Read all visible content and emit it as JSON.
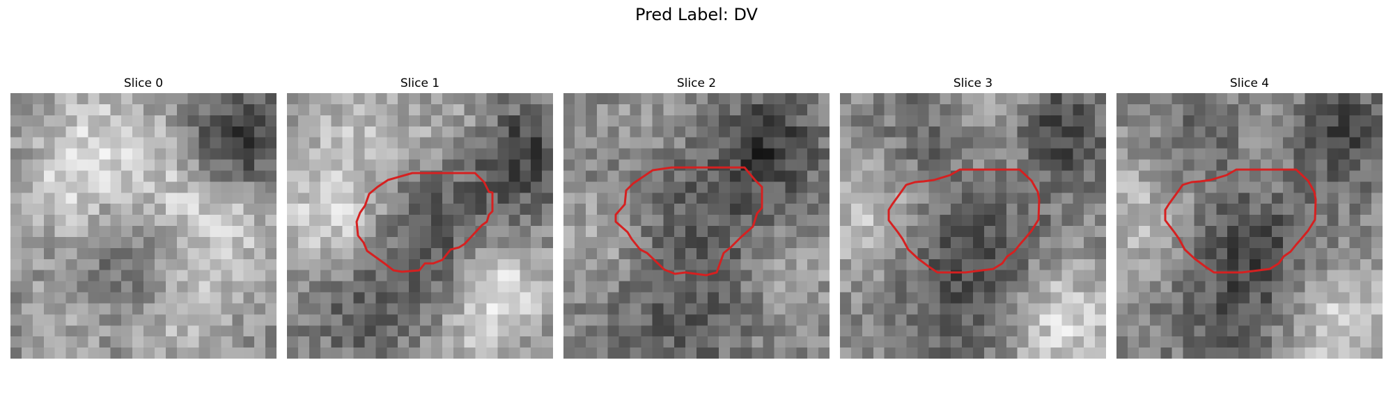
{
  "figure": {
    "title": "Pred Label: DV"
  },
  "panels": [
    {
      "title": "Slice 0",
      "has_contour": false,
      "seed": 11
    },
    {
      "title": "Slice 1",
      "has_contour": true,
      "seed": 23
    },
    {
      "title": "Slice 2",
      "has_contour": true,
      "seed": 37
    },
    {
      "title": "Slice 3",
      "has_contour": true,
      "seed": 41
    },
    {
      "title": "Slice 4",
      "has_contour": true,
      "seed": 53
    }
  ],
  "contour_color": "#d62020"
}
